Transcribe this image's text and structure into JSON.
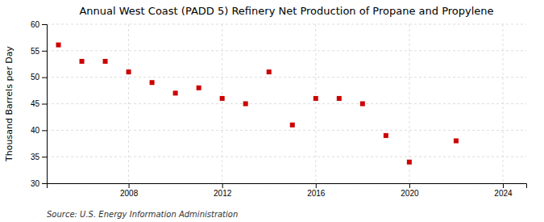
{
  "chart_data": {
    "type": "scatter",
    "title": "Annual West Coast (PADD 5) Refinery Net Production of Propane and Propylene",
    "ylabel": "Thousand Barrels per Day",
    "annotations": [
      "Source: U.S. Energy Information Administration"
    ],
    "x": [
      2005,
      2006,
      2007,
      2008,
      2009,
      2010,
      2011,
      2012,
      2013,
      2014,
      2015,
      2016,
      2017,
      2018,
      2019,
      2020,
      2022
    ],
    "values": [
      56.1,
      53.0,
      53.0,
      51.0,
      49.0,
      47.0,
      48.0,
      46.0,
      45.0,
      51.0,
      41.0,
      46.0,
      46.0,
      45.0,
      39.0,
      34.0,
      38.0
    ],
    "color": "#cc0000",
    "marker": "square",
    "xlim": [
      2004.5,
      2025
    ],
    "xticks": [
      2008,
      2012,
      2016,
      2020,
      2024
    ],
    "ylim": [
      30,
      60
    ],
    "yticks": [
      30,
      35,
      40,
      45,
      50,
      55,
      60
    ],
    "grid": true
  }
}
